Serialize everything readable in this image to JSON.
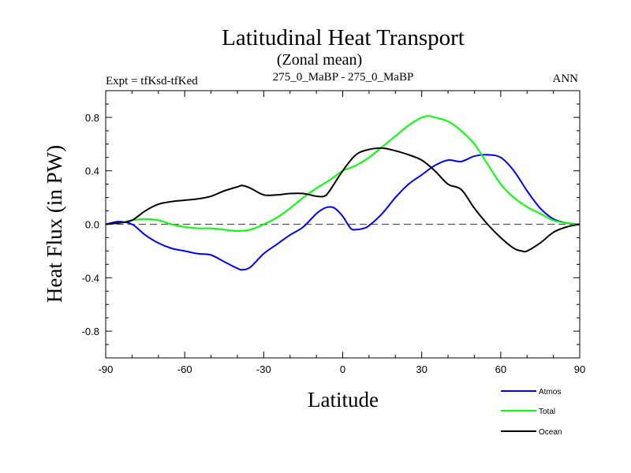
{
  "chart_data": {
    "type": "line",
    "title": "Latitudinal Heat Transport",
    "subtitle": "(Zonal mean)",
    "experiment_label": "Expt = tfKsd-tfKed",
    "comparison_label": "275_0_MaBP - 275_0_MaBP",
    "season_label": "ANN",
    "xlabel": "Latitude",
    "ylabel": "Heat Flux (in PW)",
    "xlim": [
      -90,
      90
    ],
    "ylim": [
      -1.0,
      1.0
    ],
    "xticks": [
      -90,
      -60,
      -30,
      0,
      30,
      60,
      90
    ],
    "xtick_labels": [
      "-90",
      "-60",
      "-30",
      "0",
      "30",
      "60",
      "90"
    ],
    "yticks": [
      -0.8,
      -0.4,
      0.0,
      0.4,
      0.8
    ],
    "ytick_labels": [
      "-0.8",
      "-0.4",
      "0.0",
      "0.4",
      "0.8"
    ],
    "zero_line": "dashed",
    "legend_position": "bottom-right",
    "series": [
      {
        "name": "Atmos",
        "color": "#0000ff",
        "x": [
          -90,
          -85,
          -80,
          -75,
          -70,
          -65,
          -60,
          -55,
          -50,
          -45,
          -40,
          -38,
          -35,
          -30,
          -25,
          -20,
          -15,
          -10,
          -7,
          -5,
          -3,
          0,
          3,
          5,
          8,
          10,
          15,
          20,
          25,
          30,
          35,
          40,
          45,
          50,
          55,
          60,
          65,
          70,
          75,
          80,
          85,
          90
        ],
        "values": [
          0.0,
          0.02,
          0.0,
          -0.08,
          -0.14,
          -0.18,
          -0.2,
          -0.22,
          -0.23,
          -0.28,
          -0.33,
          -0.34,
          -0.32,
          -0.22,
          -0.15,
          -0.08,
          -0.02,
          0.08,
          0.12,
          0.13,
          0.12,
          0.06,
          -0.03,
          -0.04,
          -0.03,
          -0.01,
          0.08,
          0.2,
          0.3,
          0.37,
          0.44,
          0.48,
          0.47,
          0.51,
          0.52,
          0.5,
          0.4,
          0.25,
          0.12,
          0.04,
          0.01,
          0.0
        ]
      },
      {
        "name": "Total",
        "color": "#00ff00",
        "x": [
          -90,
          -85,
          -80,
          -75,
          -70,
          -65,
          -60,
          -55,
          -50,
          -45,
          -40,
          -35,
          -30,
          -25,
          -20,
          -15,
          -10,
          -5,
          0,
          5,
          10,
          15,
          20,
          25,
          30,
          33,
          35,
          40,
          45,
          50,
          55,
          60,
          65,
          70,
          75,
          80,
          85,
          90
        ],
        "values": [
          0.0,
          0.01,
          0.03,
          0.04,
          0.03,
          0.0,
          -0.02,
          -0.03,
          -0.03,
          -0.04,
          -0.05,
          -0.04,
          0.0,
          0.05,
          0.12,
          0.2,
          0.27,
          0.33,
          0.4,
          0.44,
          0.5,
          0.58,
          0.66,
          0.74,
          0.8,
          0.81,
          0.8,
          0.77,
          0.7,
          0.6,
          0.45,
          0.3,
          0.2,
          0.13,
          0.08,
          0.03,
          0.01,
          0.0
        ]
      },
      {
        "name": "Ocean",
        "color": "#000000",
        "x": [
          -90,
          -85,
          -80,
          -75,
          -70,
          -65,
          -60,
          -55,
          -50,
          -45,
          -40,
          -38,
          -35,
          -30,
          -25,
          -20,
          -15,
          -10,
          -7,
          -5,
          0,
          5,
          10,
          15,
          20,
          25,
          30,
          35,
          40,
          45,
          50,
          55,
          60,
          65,
          68,
          70,
          75,
          80,
          85,
          90
        ],
        "values": [
          0.0,
          0.01,
          0.03,
          0.1,
          0.15,
          0.17,
          0.18,
          0.19,
          0.21,
          0.25,
          0.28,
          0.29,
          0.27,
          0.22,
          0.22,
          0.23,
          0.23,
          0.21,
          0.21,
          0.25,
          0.4,
          0.52,
          0.56,
          0.57,
          0.55,
          0.52,
          0.48,
          0.4,
          0.3,
          0.26,
          0.12,
          0.0,
          -0.1,
          -0.18,
          -0.2,
          -0.2,
          -0.14,
          -0.06,
          -0.02,
          0.0
        ]
      }
    ]
  }
}
